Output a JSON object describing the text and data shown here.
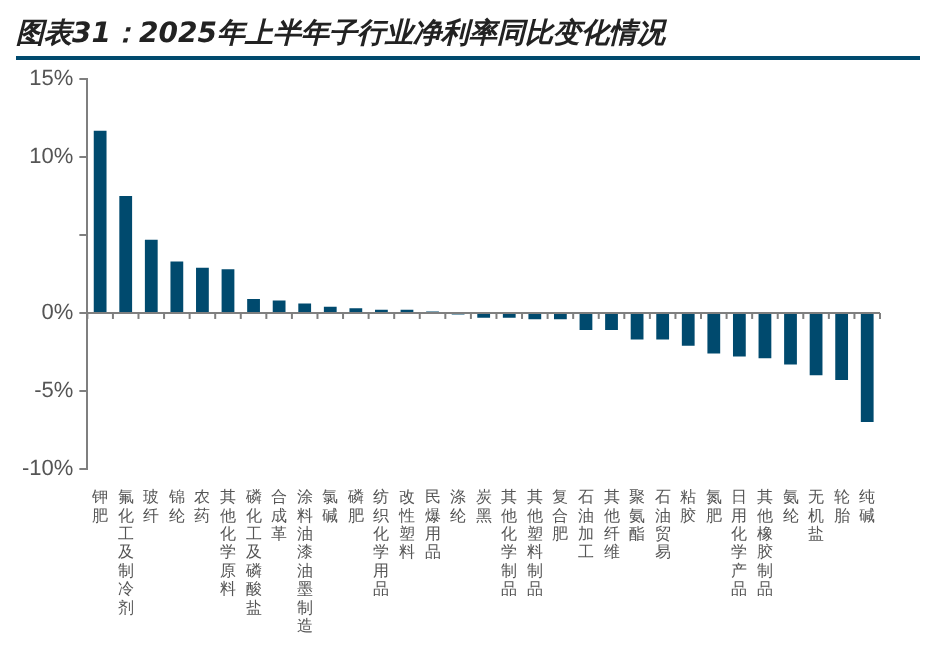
{
  "chart_data": {
    "type": "bar",
    "title": "图表31：2025年上半年子行业净利率同比变化情况",
    "categories": [
      "钾肥",
      "氟化工及制冷剂",
      "玻纤",
      "锦纶",
      "农药",
      "其他化学原料",
      "磷化工及磷酸盐",
      "合成革",
      "涂料油漆油墨制造",
      "氯碱",
      "磷肥",
      "纺织化学用品",
      "改性塑料",
      "民爆用品",
      "涤纶",
      "炭黑",
      "其他化学制品",
      "其他塑料制品",
      "复合肥",
      "石油加工",
      "其他纤维",
      "聚氨酯",
      "石油贸易",
      "粘胶",
      "氮肥",
      "日用化学产品",
      "其他橡胶制品",
      "氨纶",
      "无机盐",
      "轮胎",
      "纯碱"
    ],
    "values": [
      11.7,
      7.5,
      4.7,
      3.3,
      2.9,
      2.8,
      0.9,
      0.8,
      0.6,
      0.4,
      0.3,
      0.2,
      0.2,
      0.1,
      -0.1,
      -0.3,
      -0.3,
      -0.4,
      -0.4,
      -1.1,
      -1.1,
      -1.7,
      -1.7,
      -2.1,
      -2.6,
      -2.8,
      -2.9,
      -3.3,
      -4.0,
      -4.3,
      -7.0
    ],
    "color": "#004a6e",
    "ylim": [
      -10,
      15
    ],
    "yticks": [
      {
        "value": -10,
        "label": "-10%"
      },
      {
        "value": -5,
        "label": "-5%"
      },
      {
        "value": 0,
        "label": "0%"
      },
      {
        "value": 5,
        "label": null
      },
      {
        "value": 10,
        "label": "10%"
      },
      {
        "value": 15,
        "label": "15%"
      }
    ]
  }
}
